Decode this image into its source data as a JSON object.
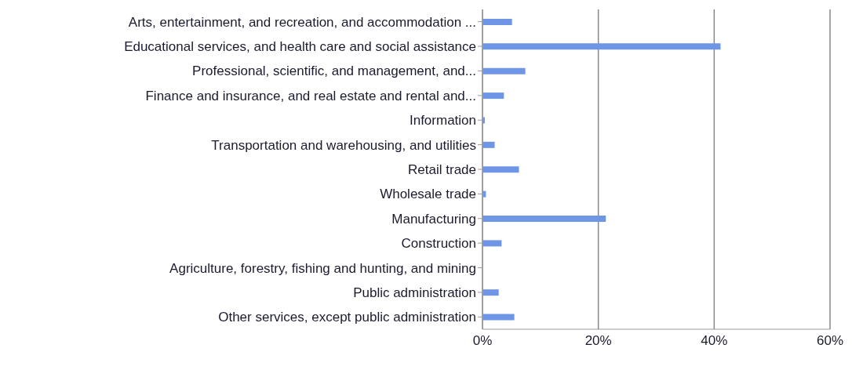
{
  "chart_data": {
    "type": "bar",
    "orientation": "horizontal",
    "categories": [
      "Arts, entertainment, and recreation, and accommodation ...",
      "Educational services, and health care and social assistance",
      "Professional, scientific, and management, and...",
      "Finance and insurance, and real estate and rental and...",
      "Information",
      "Transportation and warehousing, and utilities",
      "Retail trade",
      "Wholesale trade",
      "Manufacturing",
      "Construction",
      "Agriculture, forestry, fishing and hunting, and mining",
      "Public administration",
      "Other services, except public administration"
    ],
    "values": [
      5.1,
      41.1,
      7.4,
      3.7,
      0.4,
      2.1,
      6.3,
      0.6,
      21.3,
      3.3,
      0,
      2.8,
      5.5
    ],
    "color": "#6f96e6",
    "xlim": [
      0,
      60
    ],
    "xticks": [
      {
        "value": 0,
        "label": "0%"
      },
      {
        "value": 20,
        "label": "20%"
      },
      {
        "value": 40,
        "label": "40%"
      },
      {
        "value": 60,
        "label": "60%"
      }
    ],
    "grid": "x"
  }
}
